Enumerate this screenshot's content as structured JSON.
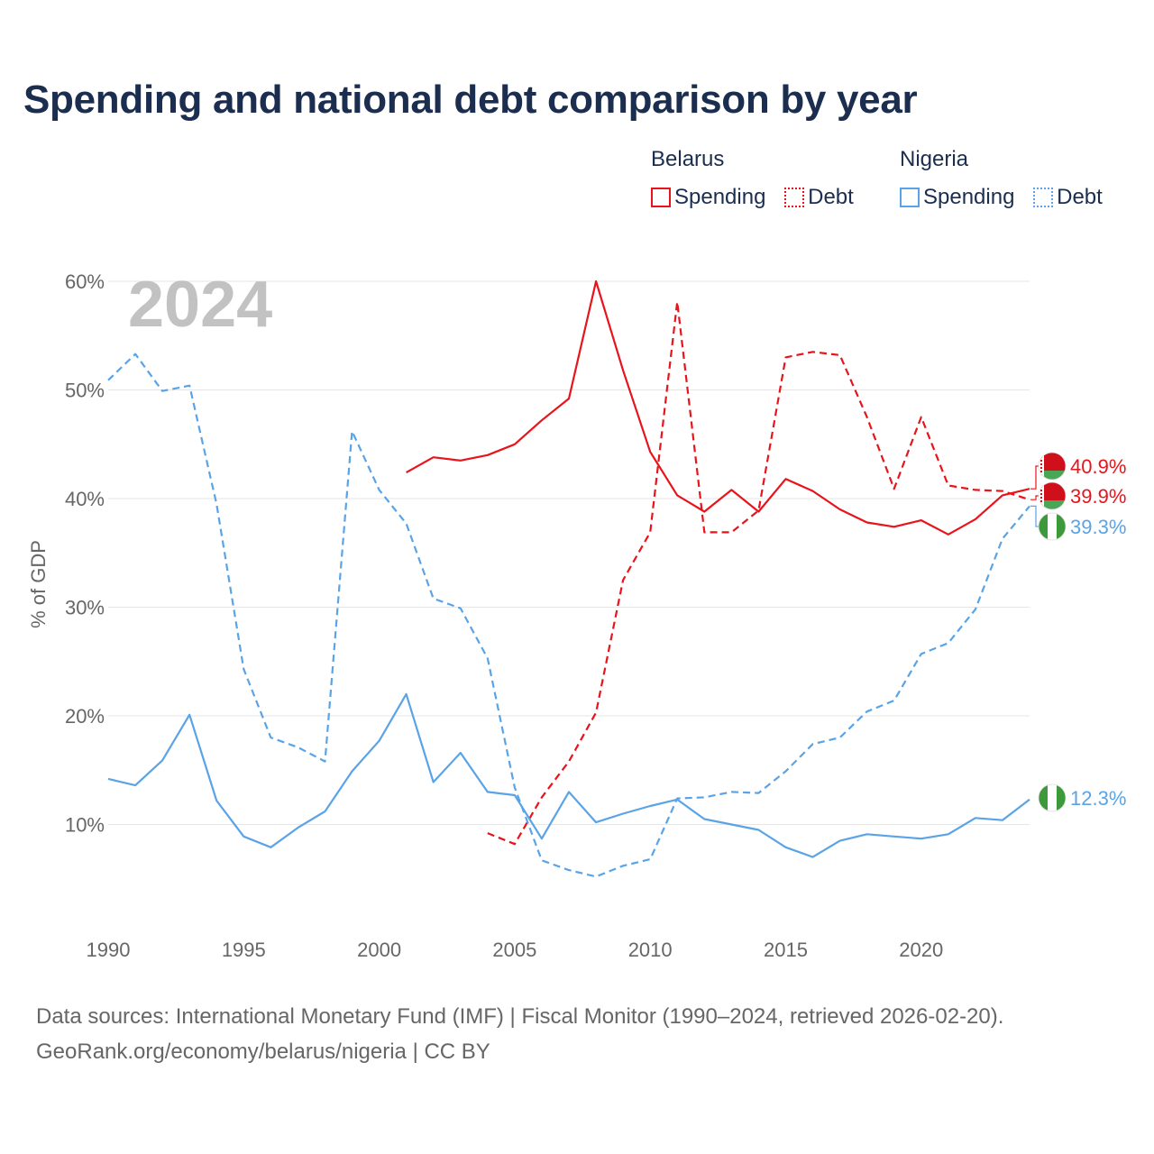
{
  "title": "Spending and national debt comparison by year",
  "legend": {
    "groups": [
      {
        "country": "Belarus",
        "color": "#e8141c",
        "spending_label": "Spending",
        "debt_label": "Debt"
      },
      {
        "country": "Nigeria",
        "color": "#5aa3e6",
        "spending_label": "Spending",
        "debt_label": "Debt"
      }
    ]
  },
  "year_overlay": "2024",
  "end_labels": [
    {
      "series": "Belarus Spending",
      "text": "40.9%",
      "value": 40.9,
      "flag": "belarus-flag-icon"
    },
    {
      "series": "Belarus Debt",
      "text": "39.9%",
      "value": 39.9,
      "flag": "belarus-flag-icon"
    },
    {
      "series": "Nigeria Debt",
      "text": "39.3%",
      "value": 39.3,
      "flag": "nigeria-flag-icon"
    },
    {
      "series": "Nigeria Spending",
      "text": "12.3%",
      "value": 12.3,
      "flag": "nigeria-flag-icon"
    }
  ],
  "chart_data": {
    "type": "line",
    "title": "Spending and national debt comparison by year",
    "xlabel": "",
    "ylabel": "% of GDP",
    "xlim": [
      1990,
      2024
    ],
    "ylim": [
      0,
      60
    ],
    "xticks": [
      1990,
      1995,
      2000,
      2005,
      2010,
      2015,
      2020
    ],
    "yticks": [
      10,
      20,
      30,
      40,
      50,
      60
    ],
    "ytick_labels": [
      "10%",
      "20%",
      "30%",
      "40%",
      "50%",
      "60%"
    ],
    "grid": true,
    "series": [
      {
        "name": "Belarus Spending",
        "color": "#e8141c",
        "style": "solid",
        "x": [
          2001,
          2002,
          2003,
          2004,
          2005,
          2006,
          2007,
          2008,
          2009,
          2010,
          2011,
          2012,
          2013,
          2014,
          2015,
          2016,
          2017,
          2018,
          2019,
          2020,
          2021,
          2022,
          2023,
          2024
        ],
        "values": [
          42.4,
          43.8,
          43.5,
          44.0,
          45.0,
          47.2,
          49.2,
          60.0,
          51.8,
          44.3,
          40.3,
          38.8,
          40.8,
          38.8,
          41.8,
          40.7,
          39.0,
          37.8,
          37.4,
          38.0,
          36.7,
          38.1,
          40.3,
          40.9
        ]
      },
      {
        "name": "Belarus Debt",
        "color": "#e8141c",
        "style": "dashed",
        "x": [
          2004,
          2005,
          2006,
          2007,
          2008,
          2009,
          2010,
          2011,
          2012,
          2013,
          2014,
          2015,
          2016,
          2017,
          2018,
          2019,
          2020,
          2021,
          2022,
          2023,
          2024
        ],
        "values": [
          9.2,
          8.2,
          12.5,
          15.8,
          20.3,
          32.5,
          36.9,
          58.1,
          36.9,
          36.9,
          38.9,
          53.0,
          53.5,
          53.2,
          47.5,
          40.9,
          47.5,
          41.2,
          40.8,
          40.7,
          39.9
        ]
      },
      {
        "name": "Nigeria Spending",
        "color": "#5aa3e6",
        "style": "solid",
        "x": [
          1990,
          1991,
          1992,
          1993,
          1994,
          1995,
          1996,
          1997,
          1998,
          1999,
          2000,
          2001,
          2002,
          2003,
          2004,
          2005,
          2006,
          2007,
          2008,
          2009,
          2010,
          2011,
          2012,
          2013,
          2014,
          2015,
          2016,
          2017,
          2018,
          2019,
          2020,
          2021,
          2022,
          2023,
          2024
        ],
        "values": [
          14.2,
          13.6,
          15.9,
          20.1,
          12.2,
          8.9,
          7.9,
          9.7,
          11.2,
          14.9,
          17.7,
          22.0,
          13.9,
          16.6,
          13.0,
          12.7,
          8.7,
          13.0,
          10.2,
          11.0,
          11.7,
          12.3,
          10.5,
          10.0,
          9.5,
          7.9,
          7.0,
          8.5,
          9.1,
          8.9,
          8.7,
          9.1,
          10.6,
          10.4,
          12.3
        ]
      },
      {
        "name": "Nigeria Debt",
        "color": "#5aa3e6",
        "style": "dashed",
        "x": [
          1990,
          1991,
          1992,
          1993,
          1994,
          1995,
          1996,
          1997,
          1998,
          1999,
          2000,
          2001,
          2002,
          2003,
          2004,
          2005,
          2006,
          2007,
          2008,
          2009,
          2010,
          2011,
          2012,
          2013,
          2014,
          2015,
          2016,
          2017,
          2018,
          2019,
          2020,
          2021,
          2022,
          2023,
          2024
        ],
        "values": [
          50.9,
          53.3,
          49.9,
          50.4,
          39.5,
          24.3,
          18.0,
          17.1,
          15.8,
          46.2,
          40.8,
          37.7,
          30.8,
          29.9,
          25.3,
          13.4,
          6.7,
          5.8,
          5.2,
          6.2,
          6.8,
          12.4,
          12.5,
          13.0,
          12.9,
          14.9,
          17.4,
          18.0,
          20.4,
          21.4,
          25.7,
          26.7,
          29.8,
          36.3,
          39.3
        ]
      }
    ]
  },
  "footer": {
    "line1": "Data sources: International Monetary Fund (IMF) | Fiscal Monitor (1990–2024, retrieved 2026-02-20).",
    "line2": "GeoRank.org/economy/belarus/nigeria | CC BY"
  }
}
